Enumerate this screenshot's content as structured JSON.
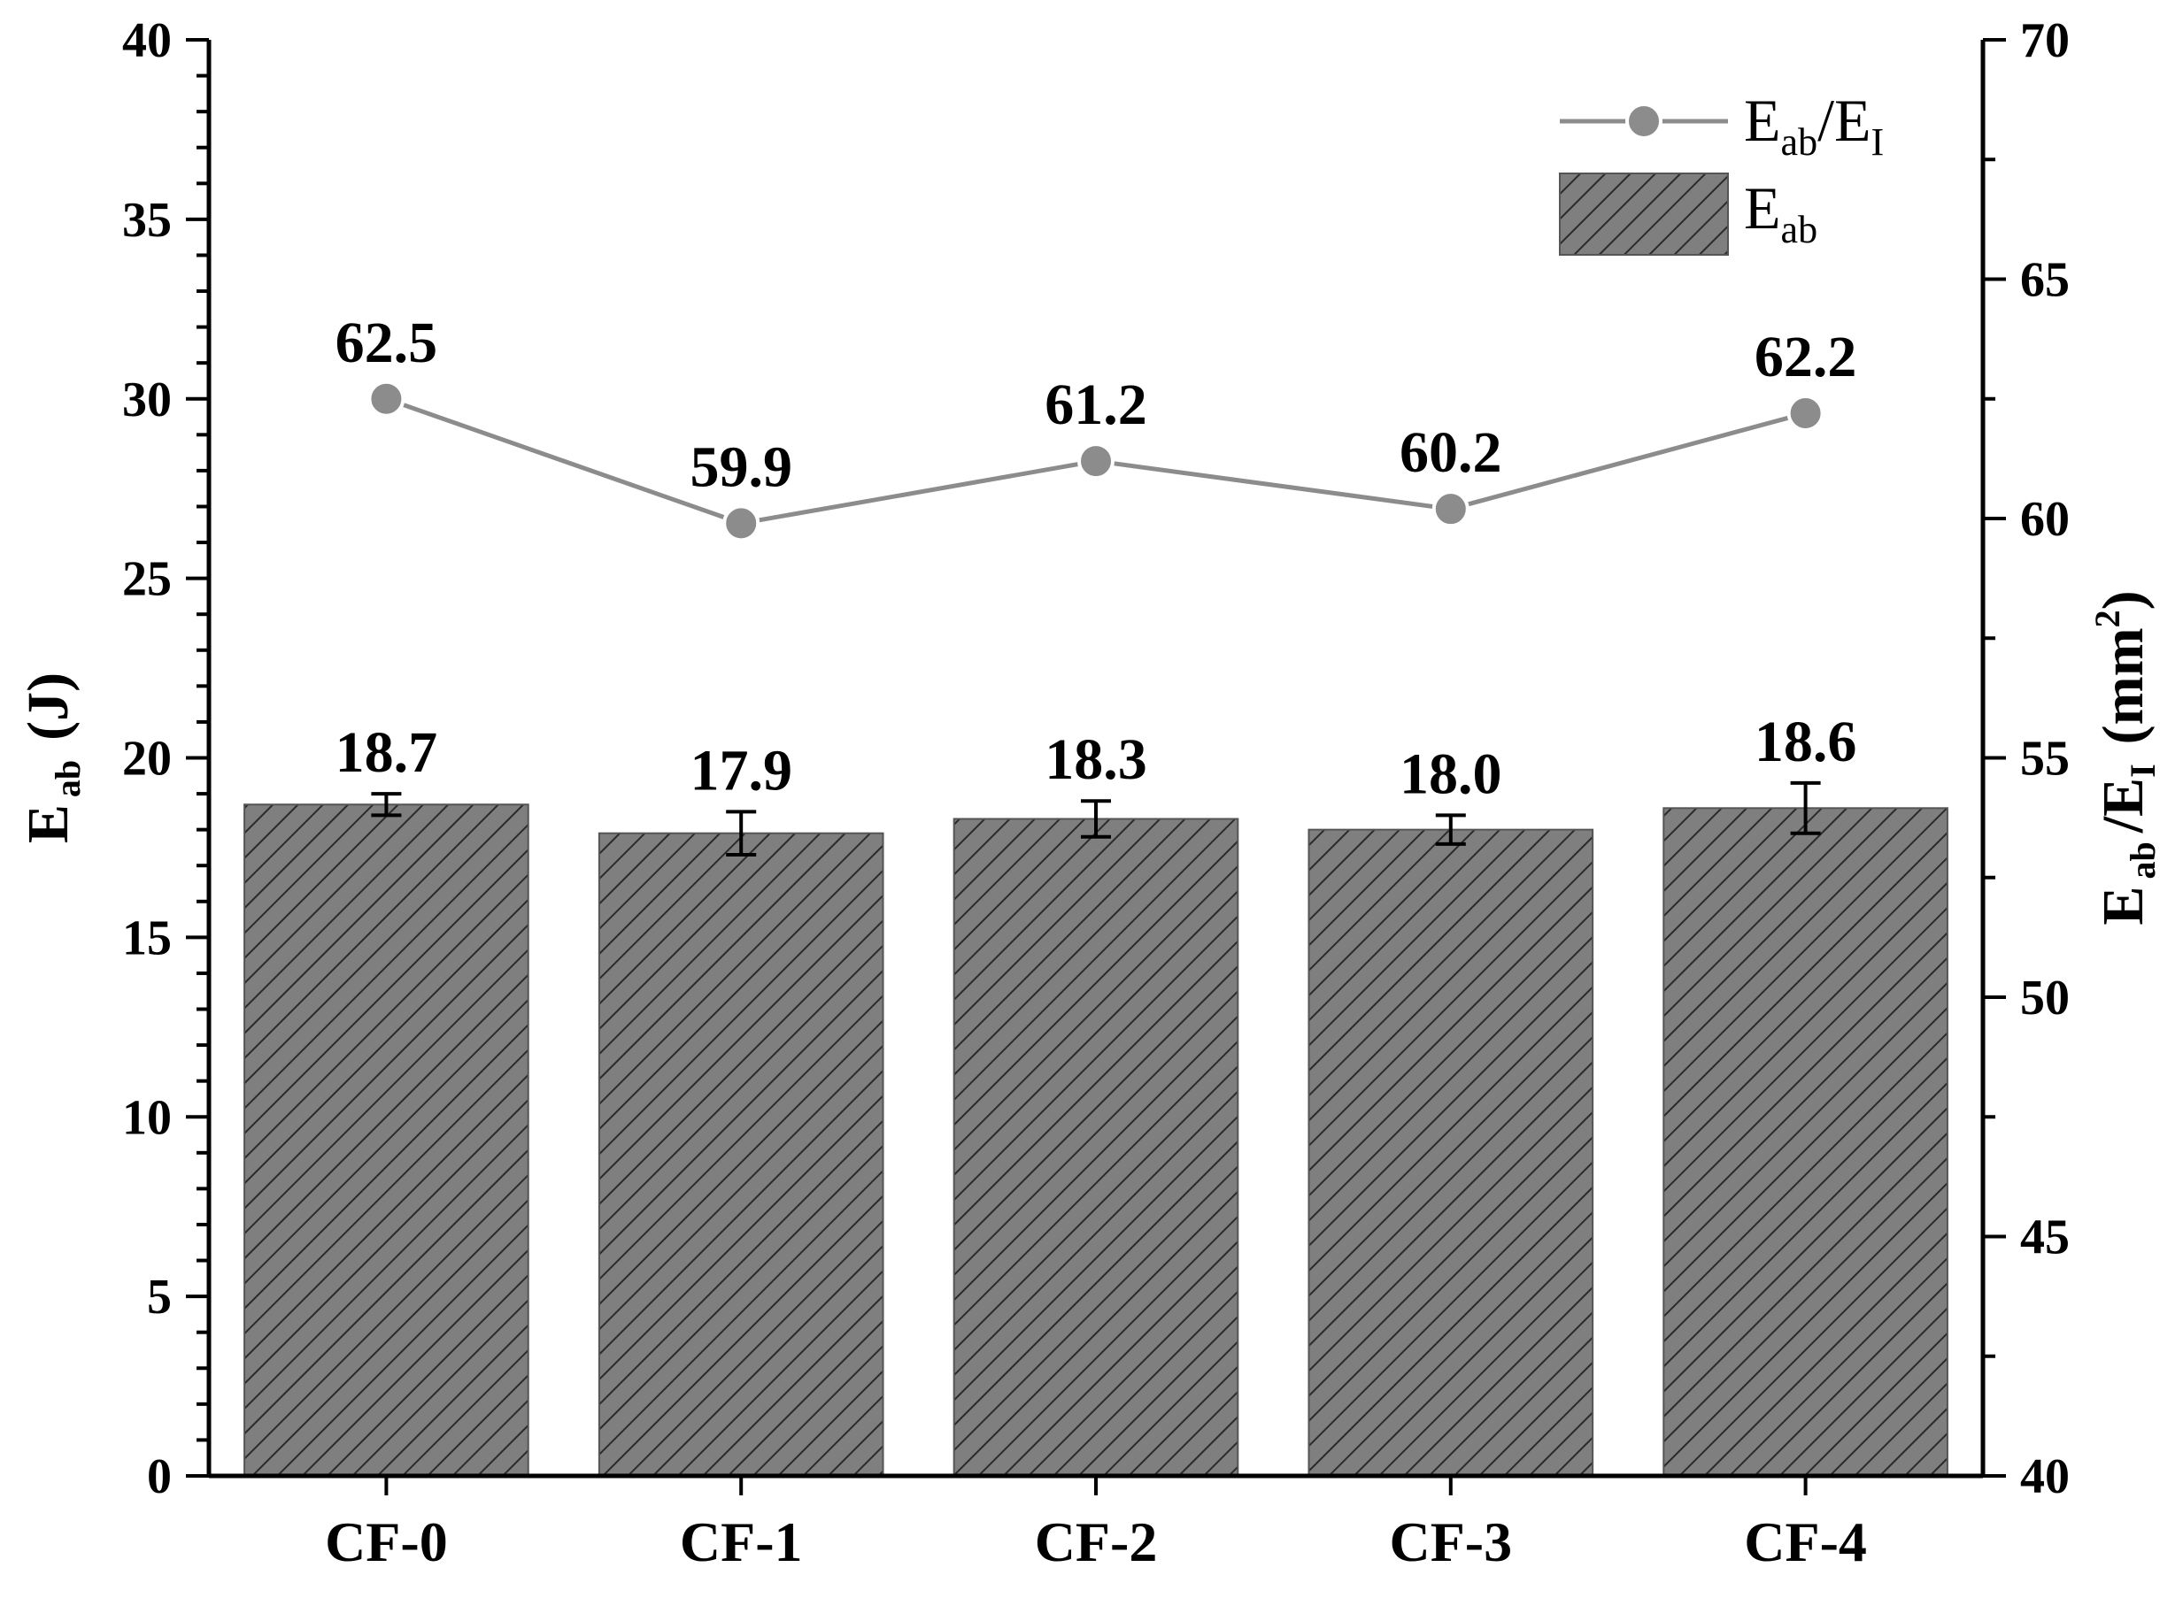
{
  "chart_data": {
    "type": "bar",
    "categories": [
      "CF-0",
      "CF-1",
      "CF-2",
      "CF-3",
      "CF-4"
    ],
    "series": [
      {
        "name": "E_ab",
        "type": "bar",
        "axis": "left",
        "values": [
          18.7,
          17.9,
          18.3,
          18.0,
          18.6
        ],
        "errors": [
          0.3,
          0.6,
          0.5,
          0.4,
          0.7
        ],
        "labels": [
          "18.7",
          "17.9",
          "18.3",
          "18.0",
          "18.6"
        ],
        "color": "#808080",
        "pattern": "diagonal-hatch"
      },
      {
        "name": "E_ab/E_I",
        "type": "line",
        "axis": "right",
        "values": [
          62.5,
          59.9,
          61.2,
          60.2,
          62.2
        ],
        "labels": [
          "62.5",
          "59.9",
          "61.2",
          "60.2",
          "62.2"
        ],
        "color": "#8c8c8c",
        "marker": "circle"
      }
    ],
    "y_left": {
      "label_main": "E",
      "label_sub": "ab",
      "label_unit": "(J)",
      "ylim": [
        0,
        40
      ],
      "ticks": [
        "0",
        "5",
        "10",
        "15",
        "20",
        "25",
        "30",
        "35",
        "40"
      ]
    },
    "y_right": {
      "label_main": "E",
      "label_sub1": "ab",
      "label_mid": "/E",
      "label_sub2": "I",
      "label_unit_pre": "(mm",
      "label_sup": "2",
      "label_unit_post": ")",
      "ylim": [
        40,
        70
      ],
      "ticks": [
        "40",
        "45",
        "50",
        "55",
        "60",
        "65",
        "70"
      ]
    },
    "legend": {
      "placement": "top-right",
      "items": [
        {
          "main": "E",
          "sub": "ab",
          "rest": "/E",
          "sub2": "I",
          "kind": "line"
        },
        {
          "main": "E",
          "sub": "ab",
          "rest": "",
          "sub2": "",
          "kind": "bar"
        }
      ]
    },
    "grid": false
  }
}
